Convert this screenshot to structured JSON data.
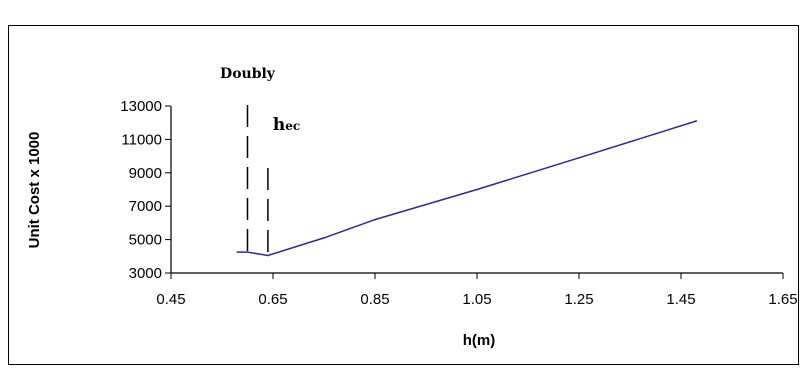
{
  "chart_data": {
    "type": "line",
    "title": "",
    "xlabel": "h(m)",
    "ylabel": "Unit Cost x 1000",
    "xlim": [
      0.45,
      1.65
    ],
    "ylim": [
      3000,
      13000
    ],
    "x_ticks": [
      "0.45",
      "0.65",
      "0.85",
      "1.05",
      "1.25",
      "1.45",
      "1.65"
    ],
    "y_ticks": [
      "3000",
      "5000",
      "7000",
      "9000",
      "11000",
      "13000"
    ],
    "grid": false,
    "legend": "none",
    "series": [
      {
        "color": "#2b2b8c",
        "x": [
          0.58,
          0.6,
          0.64,
          0.75,
          0.85,
          1.05,
          1.25,
          1.48
        ],
        "y": [
          4250,
          4250,
          4050,
          5100,
          6200,
          8000,
          9900,
          12100
        ]
      }
    ],
    "annotations": [
      {
        "label": "Doubly",
        "x": 0.6
      },
      {
        "label_main": "h",
        "label_sub": "ec",
        "x": 0.64
      }
    ]
  }
}
